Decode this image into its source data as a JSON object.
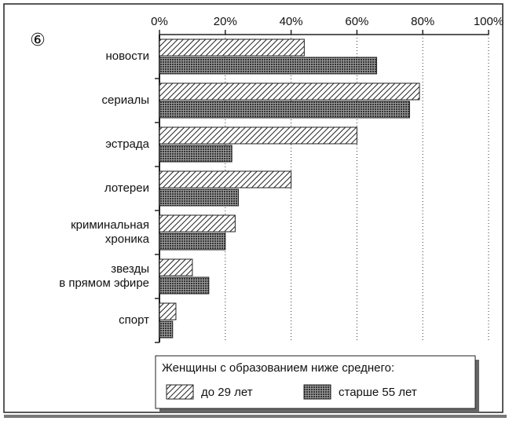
{
  "chart_data": {
    "type": "barh",
    "badge": "⑥",
    "legend_title": "Женщины с образованием ниже среднего:",
    "categories": [
      "новости",
      "сериалы",
      "эстрада",
      "лотереи",
      "криминальная\nхроника",
      "звезды\nв прямом эфире",
      "спорт"
    ],
    "series": [
      {
        "name": "до 29 лет",
        "color": "#222222",
        "pattern": "hatch",
        "values": [
          44,
          79,
          60,
          40,
          23,
          10,
          5
        ]
      },
      {
        "name": "старше 55 лет",
        "color": "#222222",
        "pattern": "grid",
        "values": [
          66,
          76,
          22,
          24,
          20,
          15,
          4
        ]
      }
    ],
    "xlim": [
      0,
      100
    ],
    "xticks": [
      {
        "value": 0,
        "label": "0%"
      },
      {
        "value": 20,
        "label": "20%"
      },
      {
        "value": 40,
        "label": "40%"
      },
      {
        "value": 60,
        "label": "60%"
      },
      {
        "value": 80,
        "label": "80%"
      },
      {
        "value": 100,
        "label": "100%"
      }
    ],
    "grid": true
  }
}
